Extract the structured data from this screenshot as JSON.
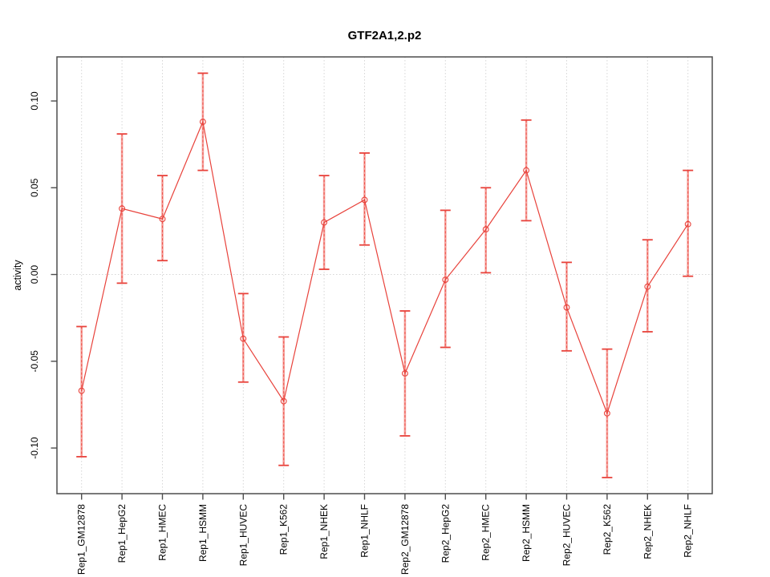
{
  "figure": {
    "background": "#ffffff"
  },
  "chart_data": {
    "type": "line",
    "title": "GTF2A1,2.p2",
    "xlabel": "",
    "ylabel": "activity",
    "categories": [
      "Rep1_GM12878",
      "Rep1_HepG2",
      "Rep1_HMEC",
      "Rep1_HSMM",
      "Rep1_HUVEC",
      "Rep1_K562",
      "Rep1_NHEK",
      "Rep1_NHLF",
      "Rep2_GM12878",
      "Rep2_HepG2",
      "Rep2_HMEC",
      "Rep2_HSMM",
      "Rep2_HUVEC",
      "Rep2_K562",
      "Rep2_NHEK",
      "Rep2_NHLF"
    ],
    "series": [
      {
        "name": "activity",
        "values": [
          -0.067,
          0.038,
          0.032,
          0.088,
          -0.037,
          -0.073,
          0.03,
          0.043,
          -0.057,
          -0.003,
          0.026,
          0.06,
          -0.019,
          -0.08,
          -0.007,
          0.029
        ],
        "upper": [
          -0.03,
          0.081,
          0.057,
          0.116,
          -0.011,
          -0.036,
          0.057,
          0.07,
          -0.021,
          0.037,
          0.05,
          0.089,
          0.007,
          -0.043,
          0.02,
          0.06
        ],
        "lower": [
          -0.105,
          -0.005,
          0.008,
          0.06,
          -0.062,
          -0.11,
          0.003,
          0.017,
          -0.093,
          -0.042,
          0.001,
          0.031,
          -0.044,
          -0.117,
          -0.033,
          -0.001
        ]
      }
    ],
    "ylim": [
      -0.1263,
      0.1254
    ],
    "yticks": [
      -0.1,
      -0.05,
      0.0,
      0.05,
      0.1
    ],
    "ytick_labels": [
      "-0.10",
      "-0.05",
      "0.00",
      "0.05",
      "0.10"
    ],
    "grid": {
      "vertical_per_category": true,
      "horizontal_at_zero": true,
      "style": "dotted",
      "color": "#d6d6d6"
    },
    "legend_position": "none",
    "marker": "open-circle",
    "colors": {
      "line": "#e8423b",
      "point": "#e8423b",
      "error_stem": "#f5a29d",
      "error_stem_dash": "#ee4d45",
      "error_cap": "#e8423b",
      "box": "#4d4d4d",
      "text": "#000000"
    }
  }
}
